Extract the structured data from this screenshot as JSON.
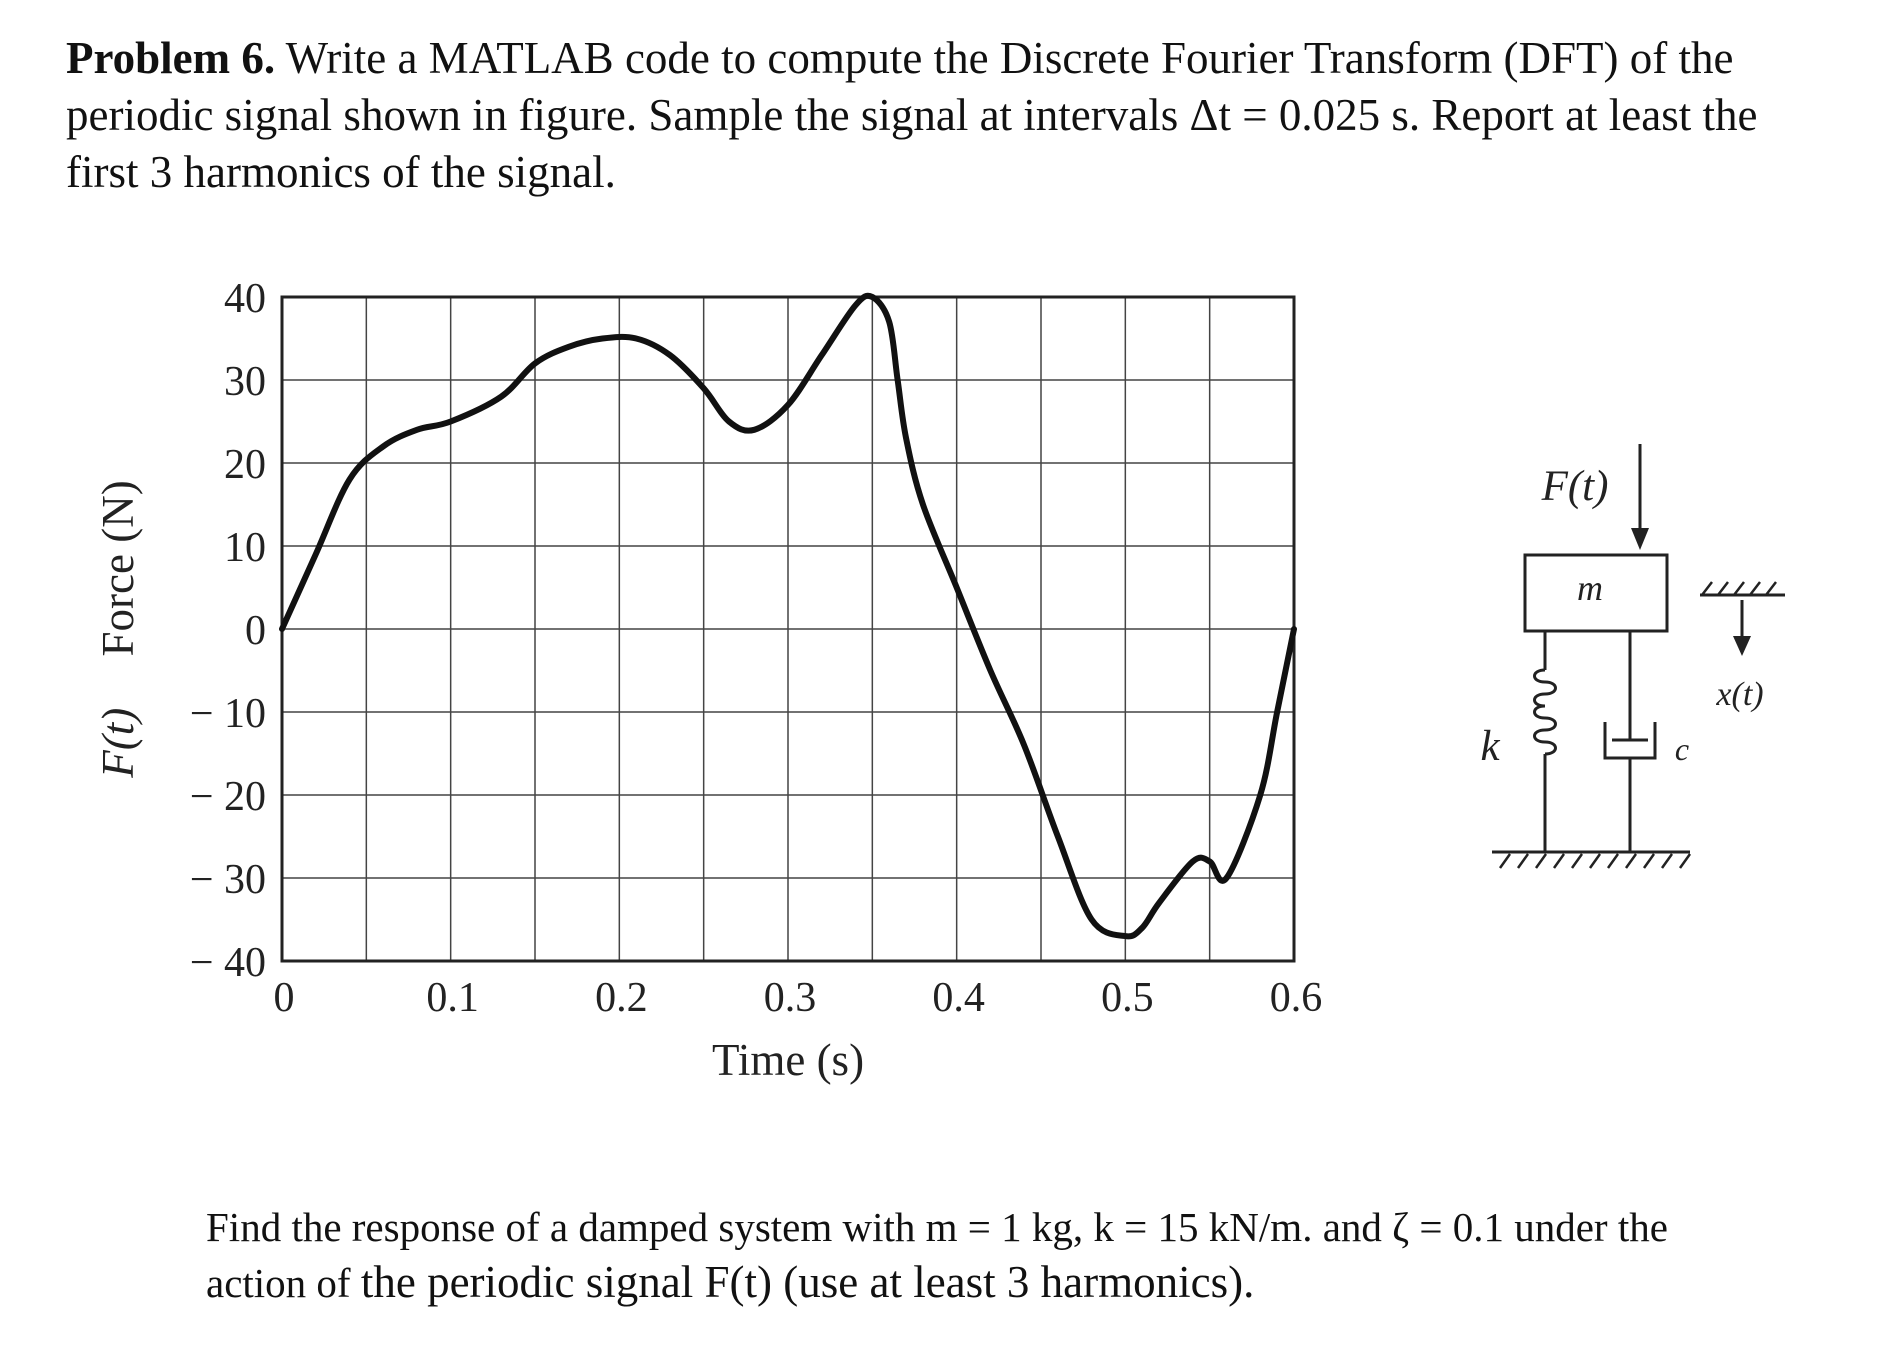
{
  "problem": {
    "label": "Problem 6.",
    "text": "Write a MATLAB code to compute the Discrete Fourier Transform (DFT) of the periodic signal shown in figure. Sample the signal at intervals Δt = 0.025 s. Report at least the first 3 harmonics of the signal."
  },
  "chart_data": {
    "type": "line",
    "xlabel": "Time (s)",
    "ylabel_var": "F(t)",
    "ylabel": "Force (N)",
    "xlim": [
      0,
      0.6
    ],
    "ylim": [
      -40,
      40
    ],
    "xticks": [
      0,
      0.1,
      0.2,
      0.3,
      0.4,
      0.5,
      0.6
    ],
    "xtick_labels": [
      "0",
      "0.1",
      "0.2",
      "0.3",
      "0.4",
      "0.5",
      "0.6"
    ],
    "yticks": [
      40,
      30,
      20,
      10,
      0,
      -10,
      -20,
      -30,
      -40
    ],
    "ytick_labels": [
      "40",
      "30",
      "20",
      "10",
      "0",
      "− 10",
      "− 20",
      "− 30",
      "− 40"
    ],
    "grid": true,
    "series": [
      {
        "x": [
          0,
          0.02,
          0.04,
          0.06,
          0.08,
          0.1,
          0.13,
          0.15,
          0.17,
          0.19,
          0.21,
          0.23,
          0.25,
          0.265,
          0.28,
          0.3,
          0.32,
          0.34,
          0.35,
          0.36,
          0.365,
          0.37,
          0.38,
          0.4,
          0.42,
          0.44,
          0.46,
          0.48,
          0.5,
          0.51,
          0.52,
          0.54,
          0.55,
          0.56,
          0.58,
          0.59,
          0.6
        ],
        "y": [
          0,
          9,
          18,
          22,
          24,
          25,
          28,
          32,
          34,
          35,
          35,
          33,
          29,
          25,
          24,
          27,
          33,
          39,
          40,
          37,
          30,
          23,
          15,
          5,
          -5,
          -14,
          -25,
          -35,
          -37,
          -36,
          -33,
          -28,
          -28,
          -30,
          -20,
          -10,
          0
        ]
      }
    ]
  },
  "diagram": {
    "force_label": "F(t)",
    "mass_label": "m",
    "spring_label": "k",
    "damper_label": "c",
    "displacement_label": "x(t)"
  },
  "bottom": {
    "line1": "Find the response of a damped system with m = 1 kg, k = 15 kN/m. and ζ = 0.1 under the",
    "line2_a": "action of ",
    "line2_b": "the periodic signal F(t) (use at least 3 harmonics)."
  }
}
